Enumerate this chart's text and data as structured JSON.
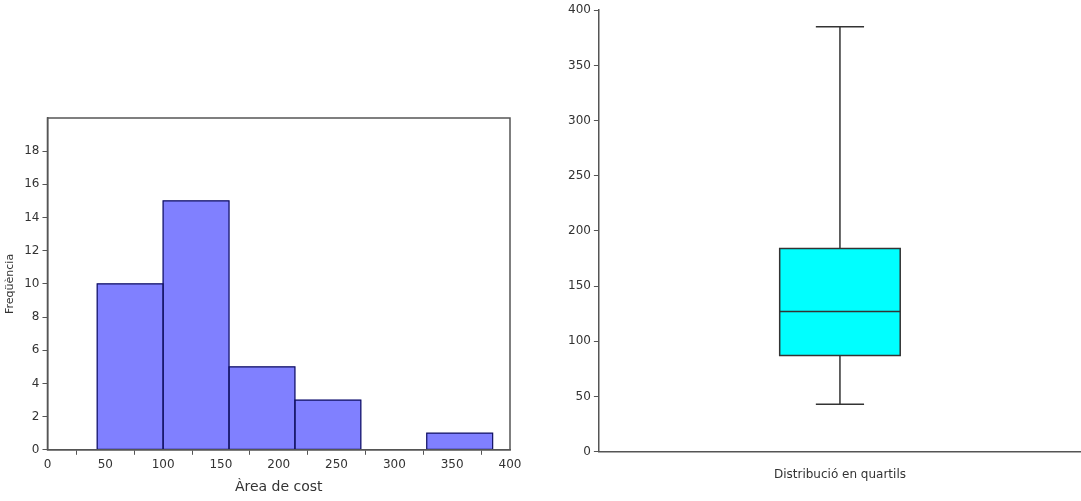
{
  "chart_data": [
    {
      "type": "histogram",
      "xlabel": "Àrea de cost",
      "ylabel": "Freqüència",
      "bins": [
        43,
        100,
        157,
        214,
        271,
        328,
        385
      ],
      "values": [
        10,
        15,
        5,
        3,
        0,
        1
      ],
      "color": "#8080ff",
      "xlim": [
        0,
        400
      ],
      "xticks": [
        0,
        50,
        100,
        150,
        200,
        250,
        300,
        350,
        400
      ],
      "ylim": [
        0,
        20
      ],
      "yticks": [
        0,
        2,
        4,
        6,
        8,
        10,
        12,
        14,
        16,
        18
      ]
    },
    {
      "type": "box",
      "categories": [
        "Distribució en quartils"
      ],
      "boxes": [
        {
          "low": 43,
          "q1": 87,
          "median": 127,
          "q3": 184,
          "high": 385
        }
      ],
      "color": "#00ffff",
      "ylim": [
        0,
        400
      ],
      "yticks": [
        0,
        50,
        100,
        150,
        200,
        250,
        300,
        350,
        400
      ]
    }
  ]
}
